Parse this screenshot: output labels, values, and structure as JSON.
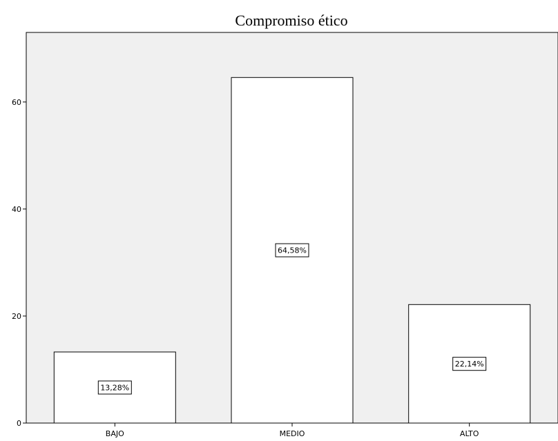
{
  "chart_data": {
    "type": "bar",
    "title": "Compromiso ético",
    "xlabel": "",
    "ylabel": "",
    "categories": [
      "BAJO",
      "MEDIO",
      "ALTO"
    ],
    "values": [
      13.28,
      64.58,
      22.14
    ],
    "data_labels": [
      "13,28%",
      "64,58%",
      "22,14%"
    ],
    "ylim": [
      0,
      73
    ],
    "yticks": [
      0,
      20,
      40,
      60
    ],
    "grid": false,
    "legend": "none",
    "colors": {
      "plot_background": "#f0f0f0",
      "bar_fill": "#ffffff",
      "bar_stroke": "#000000",
      "axis": "#000000"
    }
  }
}
